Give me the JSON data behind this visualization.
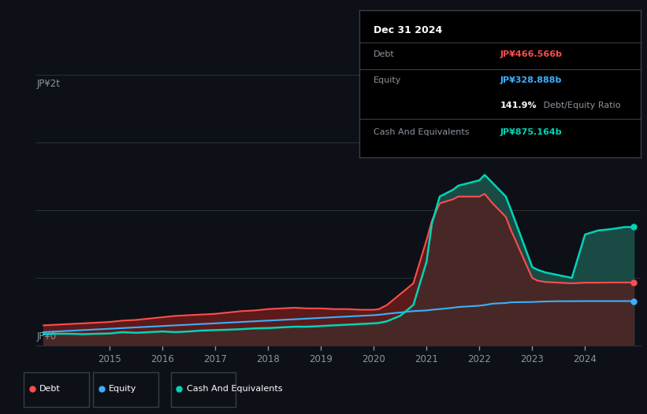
{
  "bg_color": "#0d1117",
  "grid_color": "#2a3038",
  "title_box": {
    "date": "Dec 31 2024",
    "debt_label": "Debt",
    "debt_value": "JP¥466.566b",
    "debt_color": "#ff4d4d",
    "equity_label": "Equity",
    "equity_value": "JP¥328.888b",
    "equity_color": "#3ab0ff",
    "ratio_value": "141.9%",
    "ratio_label": " Debt/Equity Ratio",
    "ratio_color": "#ffffff",
    "cash_label": "Cash And Equivalents",
    "cash_value": "JP¥875.164b",
    "cash_color": "#00d4b8"
  },
  "ylabel_top": "JP¥2t",
  "ylabel_bottom": "JP¥0",
  "ylim": [
    0,
    2.0
  ],
  "debt_color": "#ff4d4d",
  "equity_color": "#3ab0ff",
  "cash_color": "#00d4b8",
  "equity_fill": "#1c3a5e",
  "debt_fill": "#5c1a1a",
  "cash_fill": "#1a4a44",
  "years": [
    2013.75,
    2014.0,
    2014.25,
    2014.5,
    2014.75,
    2015.0,
    2015.25,
    2015.5,
    2015.75,
    2016.0,
    2016.25,
    2016.5,
    2016.75,
    2017.0,
    2017.25,
    2017.5,
    2017.75,
    2018.0,
    2018.25,
    2018.5,
    2018.75,
    2019.0,
    2019.25,
    2019.5,
    2019.75,
    2020.0,
    2020.1,
    2020.25,
    2020.5,
    2020.75,
    2021.0,
    2021.1,
    2021.25,
    2021.5,
    2021.6,
    2022.0,
    2022.1,
    2022.25,
    2022.5,
    2022.6,
    2023.0,
    2023.1,
    2023.25,
    2023.5,
    2023.75,
    2024.0,
    2024.25,
    2024.5,
    2024.75,
    2024.92
  ],
  "debt": [
    0.15,
    0.155,
    0.16,
    0.165,
    0.17,
    0.175,
    0.185,
    0.19,
    0.2,
    0.21,
    0.22,
    0.225,
    0.23,
    0.235,
    0.245,
    0.255,
    0.26,
    0.27,
    0.275,
    0.28,
    0.275,
    0.275,
    0.27,
    0.27,
    0.265,
    0.265,
    0.27,
    0.3,
    0.38,
    0.46,
    0.78,
    0.92,
    1.05,
    1.08,
    1.1,
    1.1,
    1.12,
    1.05,
    0.95,
    0.85,
    0.5,
    0.48,
    0.47,
    0.465,
    0.46,
    0.465,
    0.465,
    0.466,
    0.466,
    0.466
  ],
  "equity": [
    0.1,
    0.105,
    0.11,
    0.115,
    0.12,
    0.125,
    0.13,
    0.135,
    0.14,
    0.145,
    0.15,
    0.155,
    0.16,
    0.165,
    0.17,
    0.175,
    0.18,
    0.185,
    0.19,
    0.195,
    0.2,
    0.205,
    0.21,
    0.215,
    0.22,
    0.225,
    0.228,
    0.235,
    0.245,
    0.255,
    0.26,
    0.265,
    0.27,
    0.28,
    0.285,
    0.295,
    0.3,
    0.31,
    0.315,
    0.32,
    0.322,
    0.324,
    0.326,
    0.328,
    0.328,
    0.329,
    0.329,
    0.329,
    0.329,
    0.329
  ],
  "cash": [
    0.085,
    0.088,
    0.088,
    0.085,
    0.088,
    0.09,
    0.1,
    0.095,
    0.1,
    0.105,
    0.1,
    0.105,
    0.112,
    0.115,
    0.118,
    0.122,
    0.128,
    0.13,
    0.135,
    0.14,
    0.14,
    0.145,
    0.15,
    0.155,
    0.16,
    0.165,
    0.168,
    0.18,
    0.22,
    0.3,
    0.62,
    0.9,
    1.1,
    1.15,
    1.18,
    1.22,
    1.26,
    1.2,
    1.1,
    1.0,
    0.58,
    0.56,
    0.54,
    0.52,
    0.5,
    0.82,
    0.85,
    0.86,
    0.875,
    0.875
  ],
  "xticks": [
    2015,
    2016,
    2017,
    2018,
    2019,
    2020,
    2021,
    2022,
    2023,
    2024
  ],
  "legend_items": [
    {
      "label": "Debt",
      "color": "#ff4d4d"
    },
    {
      "label": "Equity",
      "color": "#3ab0ff"
    },
    {
      "label": "Cash And Equivalents",
      "color": "#00d4b8"
    }
  ]
}
